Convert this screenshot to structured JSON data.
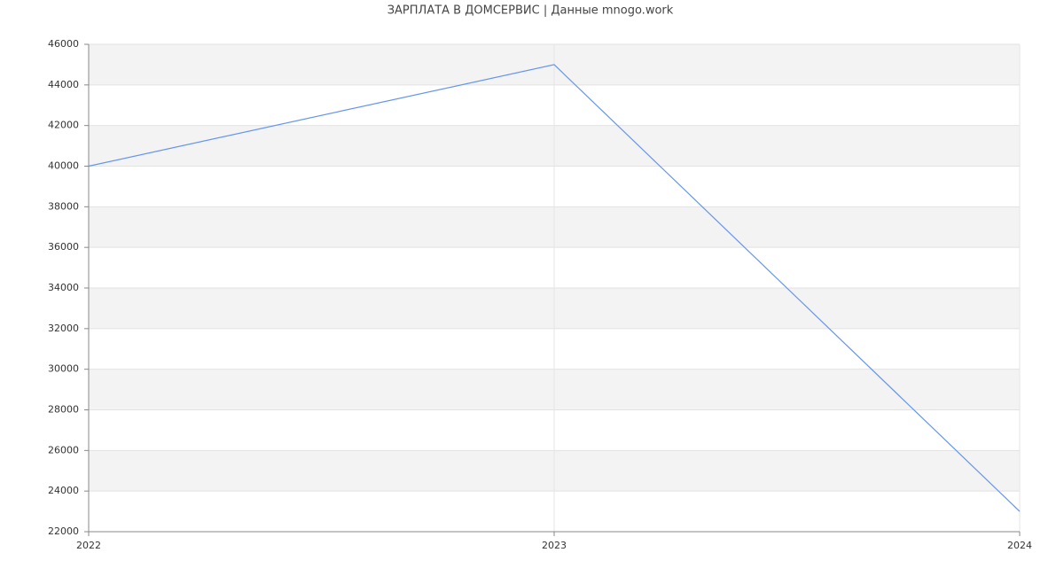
{
  "chart_data": {
    "type": "line",
    "title": "ЗАРПЛАТА В ДОМСЕРВИС | Данные mnogo.work",
    "x": [
      2022,
      2023,
      2024
    ],
    "series": [
      {
        "color": "#6495ed",
        "values": [
          40000,
          45000,
          23000
        ]
      }
    ],
    "xlim": [
      2022,
      2024
    ],
    "xticks": [
      2022,
      2023,
      2024
    ],
    "ylim": [
      22000,
      46000
    ],
    "yticks": [
      22000,
      24000,
      26000,
      28000,
      30000,
      32000,
      34000,
      36000,
      38000,
      40000,
      42000,
      44000,
      46000
    ],
    "grid": true
  }
}
